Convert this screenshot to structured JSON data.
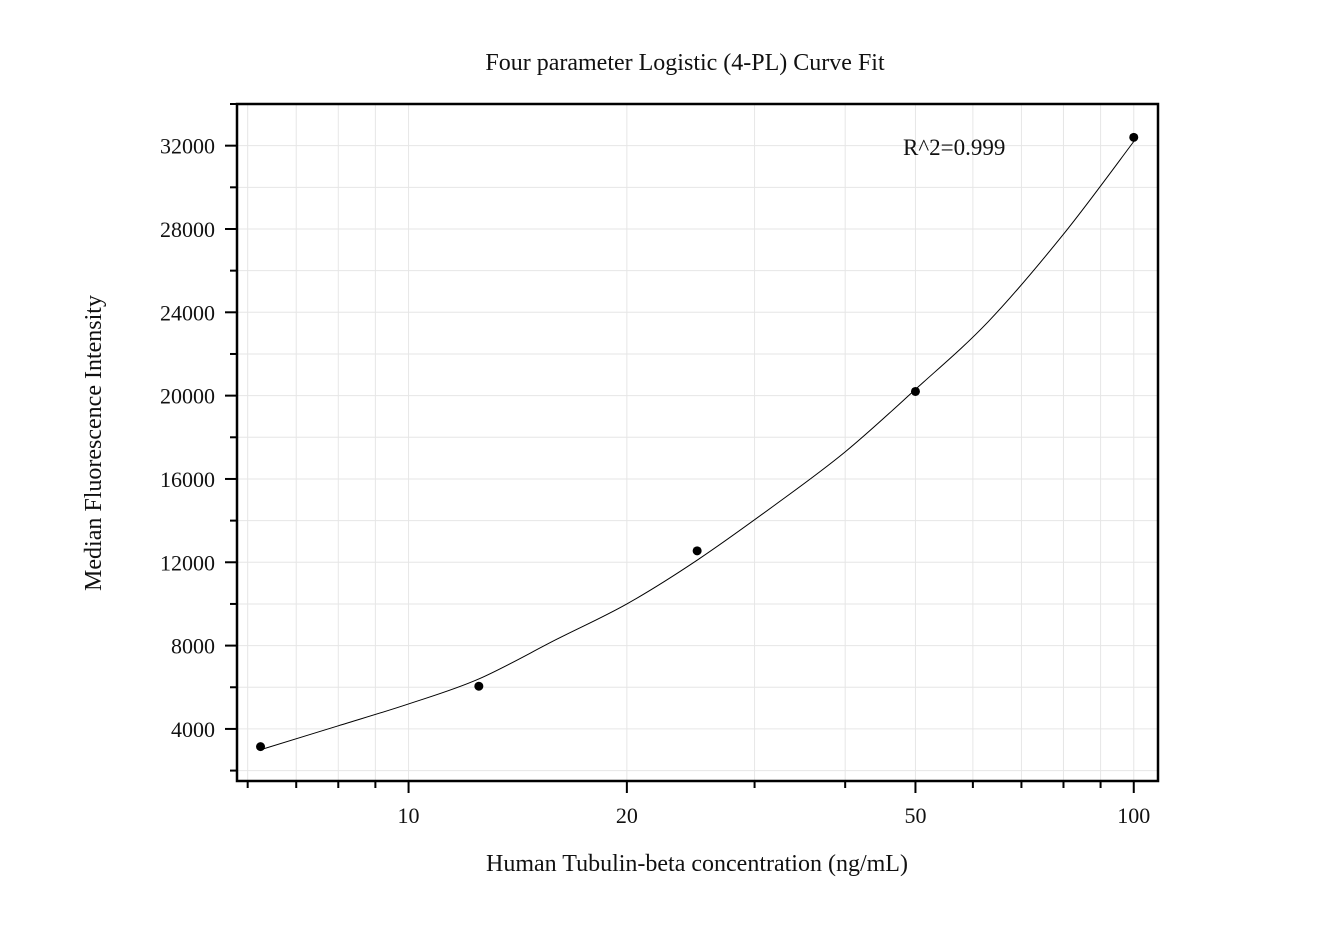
{
  "chart_data": {
    "type": "scatter",
    "title": "Four parameter Logistic (4-PL) Curve Fit",
    "xlabel": "Human Tubulin-beta concentration (ng/mL)",
    "ylabel": "Median Fluorescence Intensity",
    "x_scale": "log",
    "xlim": [
      5.8,
      108
    ],
    "ylim": [
      1500,
      34000
    ],
    "x_ticks": [
      10,
      20,
      50,
      100
    ],
    "y_ticks": [
      4000,
      8000,
      12000,
      16000,
      20000,
      24000,
      28000,
      32000
    ],
    "grid": true,
    "points": {
      "x": [
        6.25,
        12.5,
        25,
        50,
        100
      ],
      "y": [
        3150,
        6050,
        12550,
        20200,
        32400
      ]
    },
    "fit_curve": {
      "type": "4PL",
      "x": [
        6.25,
        8,
        10,
        12.5,
        16,
        20,
        25,
        32,
        40,
        50,
        63,
        80,
        100
      ],
      "y": [
        3000,
        4150,
        5200,
        6400,
        8300,
        10000,
        12100,
        14750,
        17300,
        20300,
        23550,
        27750,
        32200
      ]
    },
    "annotation": "R^2=0.999",
    "colors": {
      "points": "#000000",
      "curve": "#000000",
      "grid": "#e6e6e6",
      "frame": "#000000"
    }
  }
}
